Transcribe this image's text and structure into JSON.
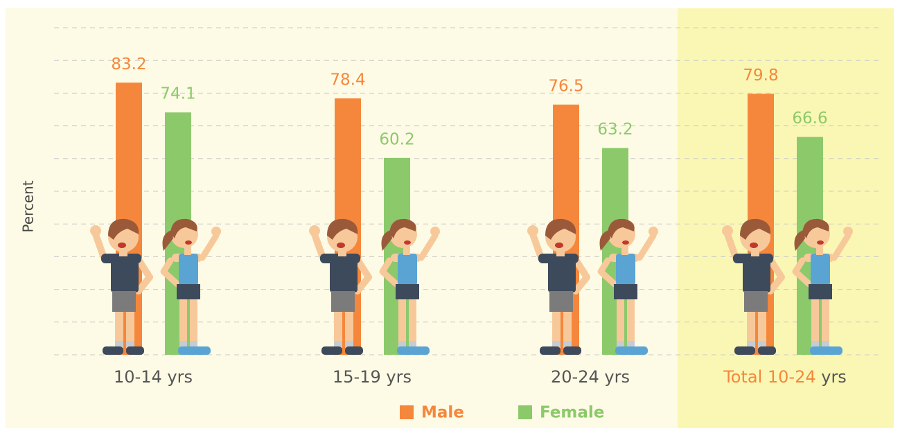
{
  "chart_data": {
    "type": "bar",
    "y_label": "Percent",
    "categories": [
      "10-14 yrs",
      "15-19 yrs",
      "20-24 yrs",
      "Total 10-24 yrs"
    ],
    "highlight_category": 3,
    "series": [
      {
        "name": "Male",
        "color": "#f5873c",
        "values": [
          83.2,
          78.4,
          76.5,
          79.8
        ]
      },
      {
        "name": "Female",
        "color": "#8cc96b",
        "values": [
          74.1,
          60.2,
          63.2,
          66.6
        ]
      }
    ],
    "ylim": [
      0,
      100
    ],
    "yticks": [
      0,
      10,
      20,
      30,
      40,
      50,
      60,
      70,
      80,
      90,
      100
    ],
    "grid": true
  }
}
